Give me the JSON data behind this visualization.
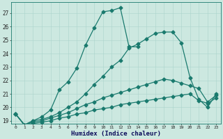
{
  "xlabel": "Humidex (Indice chaleur)",
  "bg_color": "#cce8e0",
  "line_color": "#1a7a6e",
  "xlim": [
    -0.5,
    23.5
  ],
  "ylim": [
    18.8,
    27.8
  ],
  "xticks": [
    0,
    1,
    2,
    3,
    4,
    5,
    6,
    7,
    8,
    9,
    10,
    11,
    12,
    13,
    14,
    15,
    16,
    17,
    18,
    19,
    20,
    21,
    22,
    23
  ],
  "yticks": [
    19,
    20,
    21,
    22,
    23,
    24,
    25,
    26,
    27
  ],
  "line1_x": [
    0,
    1,
    2,
    3,
    4,
    5,
    6,
    7,
    8,
    9,
    10,
    11,
    12,
    13,
    14
  ],
  "line1_y": [
    19.5,
    18.7,
    19.0,
    19.3,
    19.8,
    21.3,
    21.9,
    22.9,
    24.6,
    25.9,
    27.1,
    27.2,
    27.4,
    24.5,
    24.5
  ],
  "line2_x": [
    0,
    1,
    2,
    3,
    4,
    5,
    6,
    7,
    8,
    9,
    10,
    11,
    12,
    13,
    14,
    15,
    16,
    17,
    18,
    19,
    20,
    21,
    22,
    23
  ],
  "line2_y": [
    19.5,
    18.7,
    19.0,
    19.1,
    19.3,
    19.6,
    20.0,
    20.4,
    21.0,
    21.7,
    22.3,
    23.0,
    23.5,
    24.4,
    24.7,
    25.1,
    25.5,
    25.6,
    25.6,
    24.8,
    22.2,
    20.6,
    20.0,
    21.0
  ],
  "line3_x": [
    0,
    1,
    2,
    3,
    4,
    5,
    6,
    7,
    8,
    9,
    10,
    11,
    12,
    13,
    14,
    15,
    16,
    17,
    18,
    19,
    20,
    21,
    22,
    23
  ],
  "line3_y": [
    19.5,
    18.7,
    18.9,
    19.0,
    19.2,
    19.4,
    19.6,
    19.9,
    20.2,
    20.4,
    20.7,
    20.9,
    21.1,
    21.3,
    21.5,
    21.7,
    21.9,
    22.1,
    22.0,
    21.8,
    21.6,
    21.4,
    20.4,
    20.9
  ],
  "line4_x": [
    0,
    1,
    2,
    3,
    4,
    5,
    6,
    7,
    8,
    9,
    10,
    11,
    12,
    13,
    14,
    15,
    16,
    17,
    18,
    19,
    20,
    21,
    22,
    23
  ],
  "line4_y": [
    19.5,
    18.7,
    18.8,
    18.9,
    19.0,
    19.2,
    19.3,
    19.5,
    19.6,
    19.8,
    19.9,
    20.0,
    20.2,
    20.3,
    20.4,
    20.5,
    20.6,
    20.7,
    20.8,
    20.9,
    21.0,
    20.5,
    20.3,
    20.7
  ]
}
